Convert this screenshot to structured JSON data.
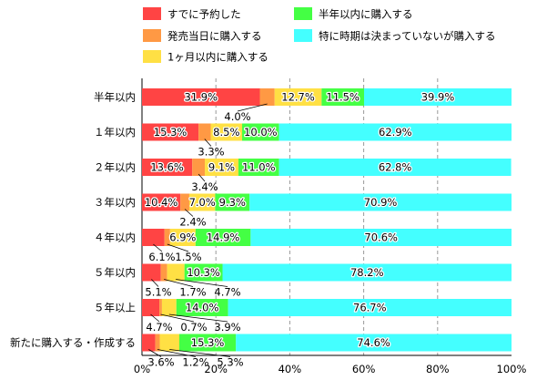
{
  "chart_data": {
    "type": "bar",
    "orientation": "horizontal",
    "stacked": true,
    "percent": true,
    "categories": [
      "半年以内",
      "１年以内",
      "２年以内",
      "３年以内",
      "４年以内",
      "５年以内",
      "５年以上",
      "新たに購入する・作成する"
    ],
    "series": [
      {
        "name": "すでに予約した",
        "color": "#ff4444",
        "values": [
          31.9,
          15.3,
          13.6,
          10.4,
          6.1,
          5.1,
          4.7,
          3.6
        ],
        "labels": [
          "31.9%",
          "15.3%",
          "13.6%",
          "10.4%",
          "6.1%",
          "5.1%",
          "4.7%",
          "3.6%"
        ]
      },
      {
        "name": "発売当日に購入する",
        "color": "#ff9944",
        "values": [
          4.0,
          3.3,
          3.4,
          2.4,
          1.5,
          1.7,
          0.7,
          1.2
        ],
        "labels": [
          "4.0%",
          "3.3%",
          "3.4%",
          "2.4%",
          "1.5%",
          "1.7%",
          "0.7%",
          "1.2%"
        ]
      },
      {
        "name": "1ヶ月以内に購入する",
        "color": "#ffe044",
        "values": [
          12.7,
          8.5,
          9.1,
          7.0,
          6.9,
          4.7,
          3.9,
          5.3
        ],
        "labels": [
          "12.7%",
          "8.5%",
          "9.1%",
          "7.0%",
          "6.9%",
          "4.7%",
          "3.9%",
          "5.3%"
        ]
      },
      {
        "name": "半年以内に購入する",
        "color": "#44ff44",
        "values": [
          11.5,
          10.0,
          11.0,
          9.3,
          14.9,
          10.3,
          14.0,
          15.3
        ],
        "labels": [
          "11.5%",
          "10.0%",
          "11.0%",
          "9.3%",
          "14.9%",
          "10.3%",
          "14.0%",
          "15.3%"
        ]
      },
      {
        "name": "特に時期は決まっていないが購入する",
        "color": "#44ffff",
        "values": [
          39.9,
          62.9,
          62.8,
          70.9,
          70.6,
          78.2,
          76.7,
          74.6
        ],
        "labels": [
          "39.9%",
          "62.9%",
          "62.8%",
          "70.9%",
          "70.6%",
          "78.2%",
          "76.7%",
          "74.6%"
        ]
      }
    ],
    "x_ticks": [
      "0%",
      "20%",
      "40%",
      "60%",
      "80%",
      "100%"
    ],
    "xlim": [
      0,
      100
    ],
    "grid": "vertical dashed",
    "legend_position": "top",
    "title": "",
    "xlabel": "",
    "ylabel": ""
  }
}
